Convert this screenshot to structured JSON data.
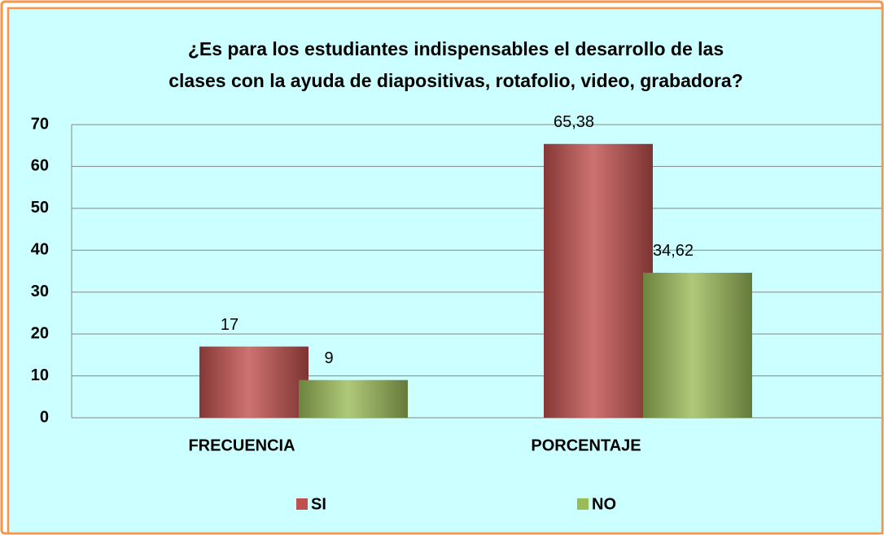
{
  "chart_data": {
    "type": "bar",
    "title": [
      "¿Es para los estudiantes indispensables el desarrollo de las",
      "clases con la ayuda de diapositivas, rotafolio, video, grabadora?"
    ],
    "categories": [
      "FRECUENCIA",
      "PORCENTAJE"
    ],
    "series": [
      {
        "name": "SI",
        "color": "#c0504d",
        "values": [
          17,
          65.38
        ],
        "value_labels": [
          "17",
          "65,38"
        ]
      },
      {
        "name": "NO",
        "color": "#9bbb59",
        "values": [
          9,
          34.62
        ],
        "value_labels": [
          "9",
          "34,62"
        ]
      }
    ],
    "ylim": [
      0,
      70
    ],
    "yticks": [
      0,
      10,
      20,
      30,
      40,
      50,
      60,
      70
    ],
    "grid": true,
    "legend": "bottom"
  }
}
